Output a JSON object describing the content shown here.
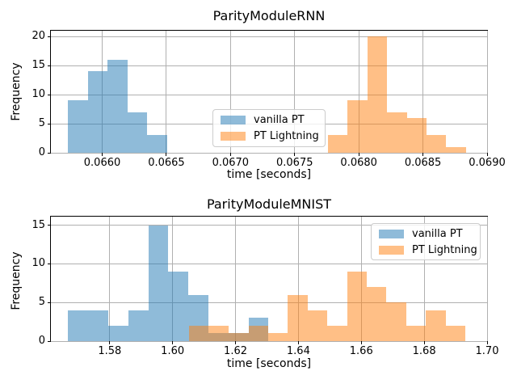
{
  "figure": {
    "background": "#ffffff",
    "grid_color": "#b0b0b0",
    "spine_color": "#000000",
    "bar_alpha": 0.5
  },
  "legend": {
    "items": [
      {
        "label": "vanilla PT",
        "color": "#1f77b4"
      },
      {
        "label": "PT Lightning",
        "color": "#ff7f0e"
      }
    ]
  },
  "chart_data": [
    {
      "type": "histogram",
      "title": "ParityModuleRNN",
      "xlabel": "time [seconds]",
      "ylabel": "Frequency",
      "xlim": [
        0.0656,
        0.069
      ],
      "ylim": [
        0,
        21
      ],
      "grid": true,
      "legend_position": "center",
      "xticks": [
        0.066,
        0.0665,
        0.067,
        0.0675,
        0.068,
        0.0685,
        0.069
      ],
      "xtick_labels": [
        "0.0660",
        "0.0665",
        "0.0670",
        "0.0675",
        "0.0680",
        "0.0685",
        "0.0690"
      ],
      "yticks": [
        0,
        5,
        10,
        15,
        20
      ],
      "ytick_labels": [
        "0",
        "5",
        "10",
        "15",
        "20"
      ],
      "series": [
        {
          "name": "vanilla PT",
          "color": "#1f77b4",
          "alpha": 0.5,
          "bin_start": 0.065735,
          "bin_width": 0.000154,
          "counts": [
            9,
            14,
            16,
            7,
            3
          ]
        },
        {
          "name": "PT Lightning",
          "color": "#ff7f0e",
          "alpha": 0.5,
          "bin_start": 0.067758,
          "bin_width": 0.000154,
          "counts": [
            3,
            9,
            20,
            7,
            6,
            3,
            1
          ]
        }
      ]
    },
    {
      "type": "histogram",
      "title": "ParityModuleMNIST",
      "xlabel": "time [seconds]",
      "ylabel": "Frequency",
      "xlim": [
        1.5613,
        1.7
      ],
      "ylim": [
        0,
        16.1
      ],
      "grid": true,
      "legend_position": "upper right",
      "xticks": [
        1.58,
        1.6,
        1.62,
        1.64,
        1.66,
        1.68,
        1.7
      ],
      "xtick_labels": [
        "1.58",
        "1.60",
        "1.62",
        "1.64",
        "1.66",
        "1.68",
        "1.70"
      ],
      "yticks": [
        0,
        5,
        10,
        15
      ],
      "ytick_labels": [
        "0",
        "5",
        "10",
        "15"
      ],
      "series": [
        {
          "name": "vanilla PT",
          "color": "#1f77b4",
          "alpha": 0.5,
          "bin_start": 1.5668,
          "bin_width": 0.00637,
          "counts": [
            4,
            4,
            2,
            4,
            15,
            9,
            6,
            1,
            1,
            3
          ]
        },
        {
          "name": "PT Lightning",
          "color": "#ff7f0e",
          "alpha": 0.5,
          "bin_start": 1.6053,
          "bin_width": 0.00627,
          "counts": [
            2,
            2,
            1,
            2,
            1,
            6,
            4,
            2,
            9,
            7,
            5,
            2,
            4,
            2
          ]
        }
      ]
    }
  ]
}
